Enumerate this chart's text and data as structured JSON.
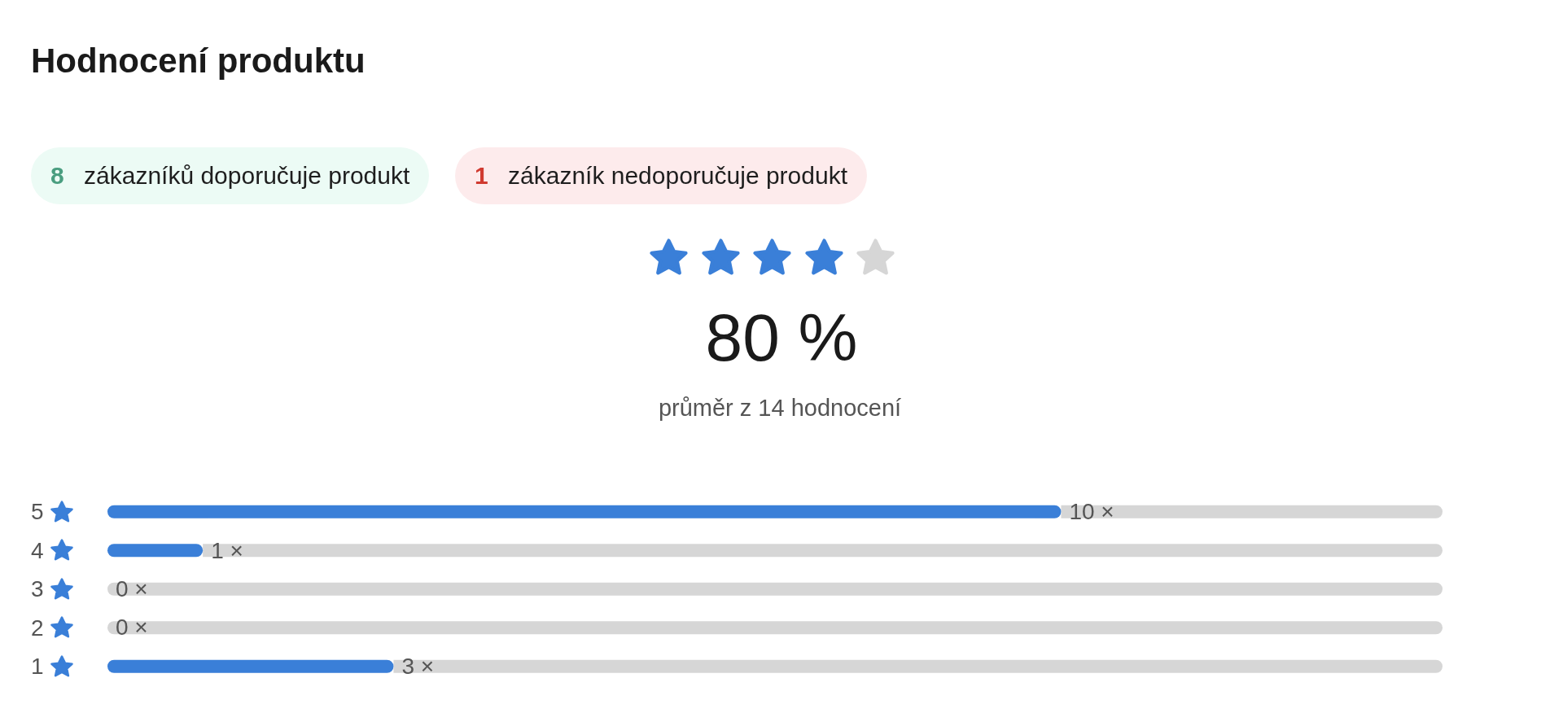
{
  "chart_data": {
    "type": "bar",
    "orientation": "horizontal",
    "stacked": true,
    "title": "Hodnocení produktu",
    "annotations": [
      "8 zákazníků doporučuje produkt",
      "1 zákazník nedoporučuje produkt",
      "80 %",
      "průměr z 14 hodnocení",
      {
        "text": "0 ×",
        "x": 0,
        "y": "3"
      },
      {
        "text": "0 ×",
        "x": 0,
        "y": "2"
      }
    ],
    "categories": [
      "5",
      "4",
      "3",
      "2",
      "1"
    ],
    "series": [
      {
        "color": "#3a7fd8",
        "values": [
          10,
          1,
          0,
          0,
          3
        ],
        "value_labels": [
          "10 ×",
          "1 ×",
          null,
          null,
          "3 ×"
        ]
      },
      {
        "color": "#d6d6d6",
        "values": [
          4,
          13,
          14,
          14,
          11
        ]
      }
    ],
    "xlim": [
      0,
      14
    ],
    "tick_labels": "y"
  }
}
